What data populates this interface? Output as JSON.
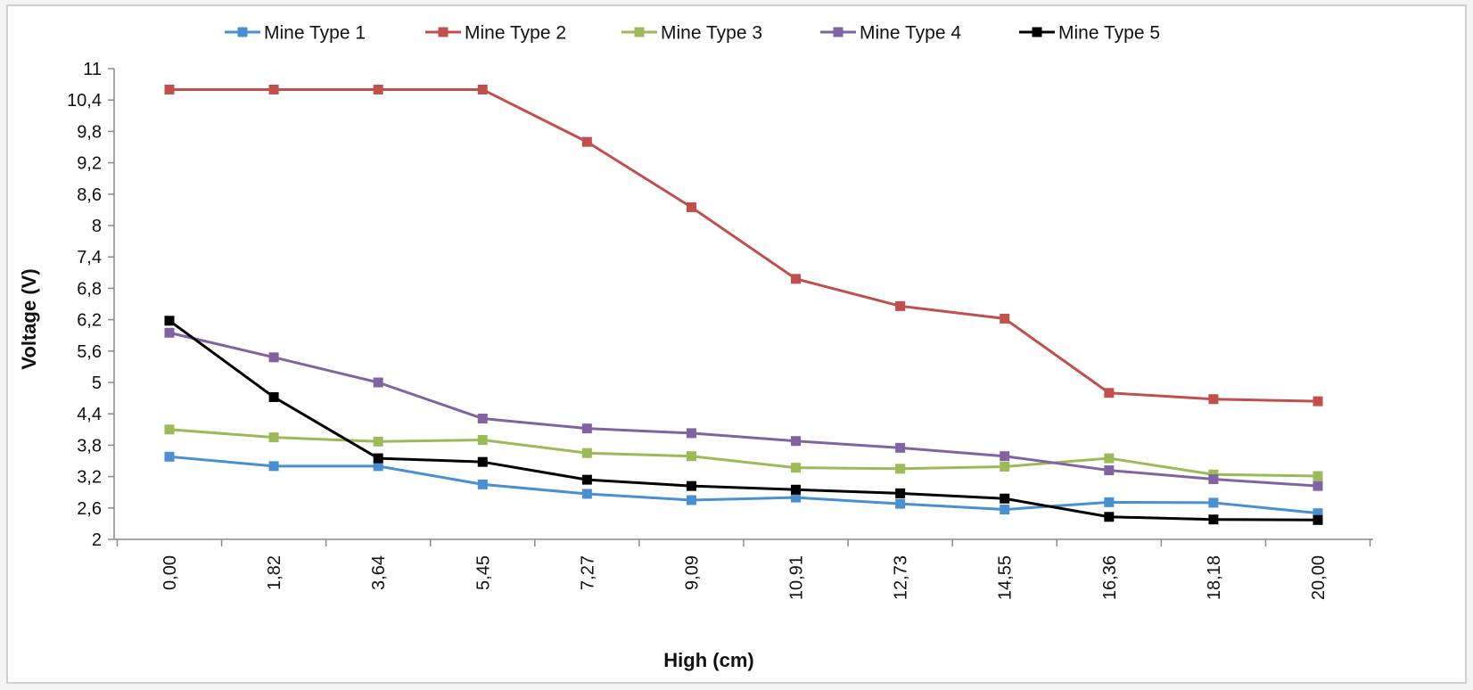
{
  "chart_data": {
    "type": "line",
    "title": "",
    "xlabel": "High (cm)",
    "ylabel": "Voltage (V)",
    "categories": [
      "0,00",
      "1,82",
      "3,64",
      "5,45",
      "7,27",
      "9,09",
      "10,91",
      "12,73",
      "14,55",
      "16,36",
      "18,18",
      "20,00"
    ],
    "y_ticks": [
      "2",
      "2,6",
      "3,2",
      "3,8",
      "4,4",
      "5",
      "5,6",
      "6,2",
      "6,8",
      "7,4",
      "8",
      "8,6",
      "9,2",
      "9,8",
      "10,4",
      "11"
    ],
    "ylim": [
      2,
      11
    ],
    "grid": false,
    "legend_position": "top",
    "series": [
      {
        "name": "Mine Type 1",
        "color": "#4a8fd0",
        "values": [
          3.58,
          3.4,
          3.4,
          3.05,
          2.87,
          2.75,
          2.8,
          2.68,
          2.57,
          2.71,
          2.7,
          2.5
        ]
      },
      {
        "name": "Mine Type 2",
        "color": "#c0504d",
        "values": [
          10.6,
          10.6,
          10.6,
          10.6,
          9.6,
          8.35,
          6.98,
          6.46,
          6.22,
          4.8,
          4.68,
          4.64
        ]
      },
      {
        "name": "Mine Type 3",
        "color": "#9bbb59",
        "values": [
          4.1,
          3.95,
          3.87,
          3.9,
          3.65,
          3.59,
          3.37,
          3.35,
          3.39,
          3.55,
          3.24,
          3.21
        ]
      },
      {
        "name": "Mine Type 4",
        "color": "#8064a2",
        "values": [
          5.95,
          5.48,
          5.0,
          4.31,
          4.12,
          4.03,
          3.88,
          3.75,
          3.59,
          3.32,
          3.15,
          3.02
        ]
      },
      {
        "name": "Mine Type 5",
        "color": "#000000",
        "values": [
          6.18,
          4.72,
          3.55,
          3.48,
          3.14,
          3.02,
          2.95,
          2.88,
          2.78,
          2.43,
          2.38,
          2.37
        ]
      }
    ]
  }
}
